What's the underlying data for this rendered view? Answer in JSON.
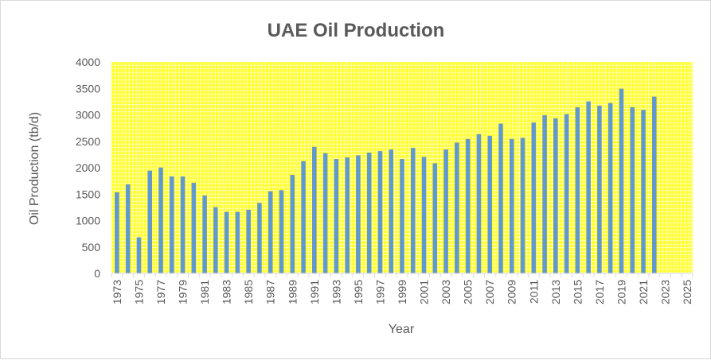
{
  "chart_data": {
    "type": "bar",
    "title": "UAE Oil Production",
    "xlabel": "Year",
    "ylabel": "Oil Production (tb/d)",
    "ylim": [
      0,
      4000
    ],
    "yticks": [
      0,
      500,
      1000,
      1500,
      2000,
      2500,
      3000,
      3500,
      4000
    ],
    "xtick_labels": [
      "1973",
      "1975",
      "1977",
      "1979",
      "1981",
      "1983",
      "1985",
      "1987",
      "1989",
      "1991",
      "1993",
      "1995",
      "1997",
      "1999",
      "2001",
      "2003",
      "2005",
      "2007",
      "2009",
      "2011",
      "2013",
      "2015",
      "2017",
      "2019",
      "2021",
      "2023",
      "2025"
    ],
    "categories": [
      1973,
      1974,
      1975,
      1976,
      1977,
      1978,
      1979,
      1980,
      1981,
      1982,
      1983,
      1984,
      1985,
      1986,
      1987,
      1988,
      1989,
      1990,
      1991,
      1992,
      1993,
      1994,
      1995,
      1996,
      1997,
      1998,
      1999,
      2000,
      2001,
      2002,
      2003,
      2004,
      2005,
      2006,
      2007,
      2008,
      2009,
      2010,
      2011,
      2012,
      2013,
      2014,
      2015,
      2016,
      2017,
      2018,
      2019,
      2020,
      2021,
      2022,
      2023,
      2024,
      2025
    ],
    "values": [
      1530,
      1680,
      680,
      1940,
      2000,
      1830,
      1830,
      1710,
      1470,
      1250,
      1160,
      1160,
      1200,
      1330,
      1550,
      1570,
      1860,
      2120,
      2390,
      2270,
      2160,
      2190,
      2230,
      2280,
      2310,
      2340,
      2160,
      2370,
      2200,
      2080,
      2340,
      2470,
      2540,
      2630,
      2600,
      2830,
      2540,
      2560,
      2850,
      2990,
      2930,
      3010,
      3140,
      3250,
      3170,
      3220,
      3490,
      3140,
      3090,
      3340,
      null,
      null,
      null
    ],
    "grid": true,
    "legend": "none",
    "colors": {
      "bar": "#5b9bd5",
      "bar_edge": "#8c9199",
      "plot_background": "#ffff33",
      "grid": "#ffffff",
      "axis_line": "#d9d9d9",
      "text": "#595959"
    }
  }
}
